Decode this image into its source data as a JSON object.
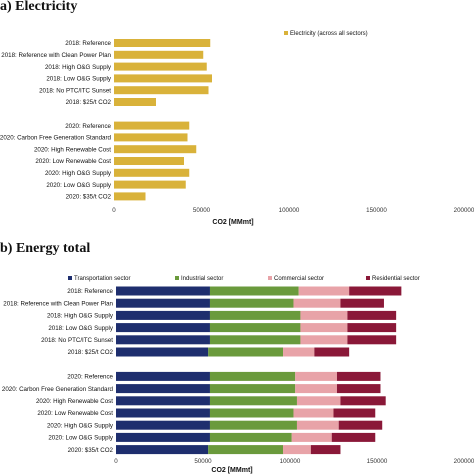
{
  "chart_data": [
    {
      "panel_label": "a) Electricity",
      "type": "bar",
      "orientation": "horizontal",
      "categories": [
        "2018: Reference",
        "2018: Reference with Clean Power Plan",
        "2018: High O&G Supply",
        "2018: Low O&G Supply",
        "2018: No PTC/ITC Sunset",
        "2018: $25/t CO2",
        "",
        "2020: Reference",
        "2020: Carbon Free Generation Standard",
        "2020: High Renewable Cost",
        "2020: Low Renewable Cost",
        "2020: High O&G Supply",
        "2020: Low O&G Supply",
        "2020: $35/t CO2"
      ],
      "series": [
        {
          "name": "Electricity (across all sectors)",
          "color": "#d9b23a",
          "values": [
            55000,
            51000,
            53000,
            56000,
            54000,
            24000,
            null,
            43000,
            42000,
            47000,
            40000,
            43000,
            41000,
            18000
          ]
        }
      ],
      "xlabel": "CO2 [MMmt]",
      "xlim": [
        0,
        200000
      ],
      "xticks": [
        "0",
        "50000",
        "100000",
        "150000",
        "200000"
      ],
      "legend_position": "top-right",
      "grid": false
    },
    {
      "panel_label": "b) Energy total",
      "type": "bar",
      "orientation": "horizontal",
      "stacked": true,
      "categories": [
        "2018: Reference",
        "2018: Reference with Clean Power Plan",
        "2018: High O&G Supply",
        "2018: Low O&G Supply",
        "2018: No PTC/ITC Sunset",
        "2018: $25/t CO2",
        "",
        "2020: Reference",
        "2020: Carbon Free Generation Standard",
        "2020: High Renewable Cost",
        "2020: Low Renewable Cost",
        "2020: High O&G Supply",
        "2020: Low O&G Supply",
        "2020: $35/t CO2"
      ],
      "series": [
        {
          "name": "Transportation sector",
          "color": "#1e2e6e",
          "values": [
            54000,
            54000,
            54000,
            54000,
            54000,
            53000,
            null,
            54000,
            54000,
            54000,
            54000,
            54000,
            54000,
            53000
          ]
        },
        {
          "name": "Industrial sector",
          "color": "#6a9a3c",
          "values": [
            51000,
            48000,
            52000,
            52000,
            52000,
            43000,
            null,
            49000,
            49000,
            50000,
            48000,
            50000,
            47000,
            43000
          ]
        },
        {
          "name": "Commercial sector",
          "color": "#e8a3a8",
          "values": [
            29000,
            27000,
            27000,
            27000,
            27000,
            18000,
            null,
            24000,
            24000,
            25000,
            23000,
            24000,
            23000,
            16000
          ]
        },
        {
          "name": "Residential sector",
          "color": "#8a1838",
          "values": [
            30000,
            25000,
            28000,
            28000,
            28000,
            20000,
            null,
            25000,
            25000,
            26000,
            24000,
            25000,
            25000,
            17000
          ]
        }
      ],
      "xlabel": "CO2 [MMmt]",
      "xlim": [
        0,
        200000
      ],
      "xticks": [
        "0",
        "50000",
        "100000",
        "150000",
        "200000"
      ],
      "legend_position": "top",
      "grid": false
    }
  ]
}
